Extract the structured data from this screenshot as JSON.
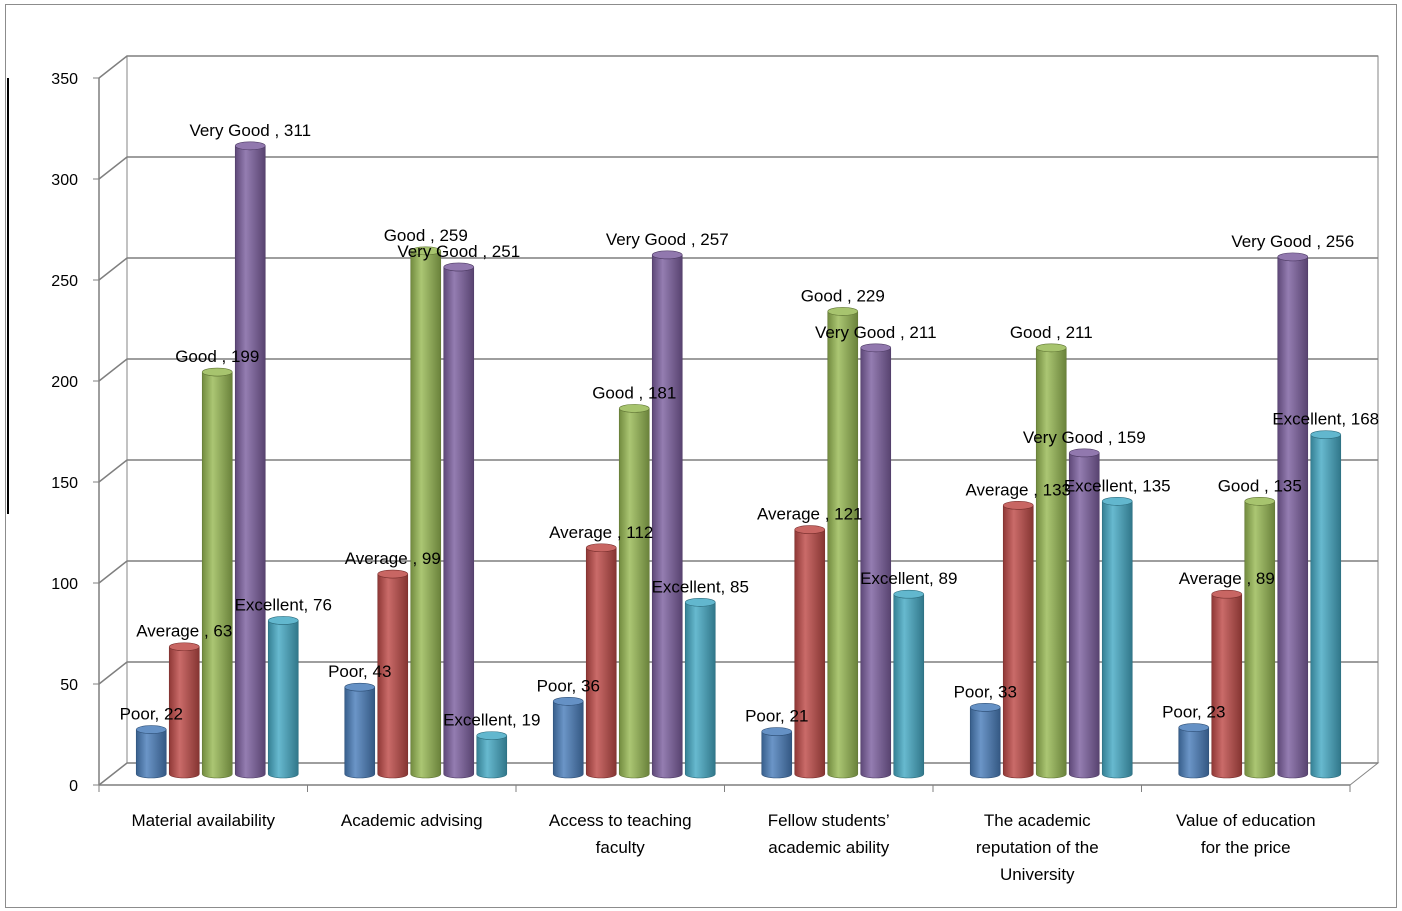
{
  "chart_data": {
    "type": "bar",
    "categories": [
      "Material availability",
      "Academic advising",
      "Access to teaching faculty",
      "Fellow students’ academic ability",
      "The academic reputation of the University",
      "Value of education for the price"
    ],
    "category_label_lines": [
      [
        "Material availability"
      ],
      [
        "Academic advising"
      ],
      [
        "Access to teaching",
        "faculty"
      ],
      [
        "Fellow students’",
        "academic ability"
      ],
      [
        "The academic",
        "reputation of the",
        "University"
      ],
      [
        "Value of education",
        "for the price"
      ]
    ],
    "series": [
      {
        "name": "Poor",
        "color": "#4a7ebb",
        "values": [
          22,
          43,
          36,
          21,
          33,
          23
        ]
      },
      {
        "name": "Average",
        "color": "#be4b48",
        "values": [
          63,
          99,
          112,
          121,
          133,
          89
        ]
      },
      {
        "name": "Good",
        "color": "#98b954",
        "values": [
          199,
          259,
          181,
          229,
          211,
          135
        ]
      },
      {
        "name": "Very Good",
        "color": "#7d60a0",
        "values": [
          311,
          251,
          257,
          211,
          159,
          256
        ]
      },
      {
        "name": "Excellent",
        "color": "#46aac5",
        "values": [
          76,
          19,
          85,
          89,
          135,
          168
        ]
      }
    ],
    "data_labels": [
      [
        "Poor, 22",
        "Average , 63",
        "Good , 199",
        "Very Good , 311",
        "Excellent, 76"
      ],
      [
        "Poor, 43",
        "Average , 99",
        "Good , 259",
        "Very Good , 251",
        "Excellent, 19"
      ],
      [
        "Poor, 36",
        "Average , 112",
        "Good , 181",
        "Very Good , 257",
        "Excellent, 85"
      ],
      [
        "Poor, 21",
        "Average , 121",
        "Good , 229",
        "Very Good , 211",
        "Excellent, 89"
      ],
      [
        "Poor, 33",
        "Average , 133",
        "Good , 211",
        "Very Good , 159",
        "Excellent, 135"
      ],
      [
        "Poor, 23",
        "Average , 89",
        "Good , 135",
        "Very Good , 256",
        "Excellent, 168"
      ]
    ],
    "yticks": [
      "0",
      "50",
      "100",
      "150",
      "200",
      "250",
      "300",
      "350"
    ],
    "ylim": [
      0,
      350
    ],
    "grid": true,
    "legend": "none",
    "style": "3d-cylinder",
    "title": "",
    "xlabel": "",
    "ylabel": ""
  }
}
